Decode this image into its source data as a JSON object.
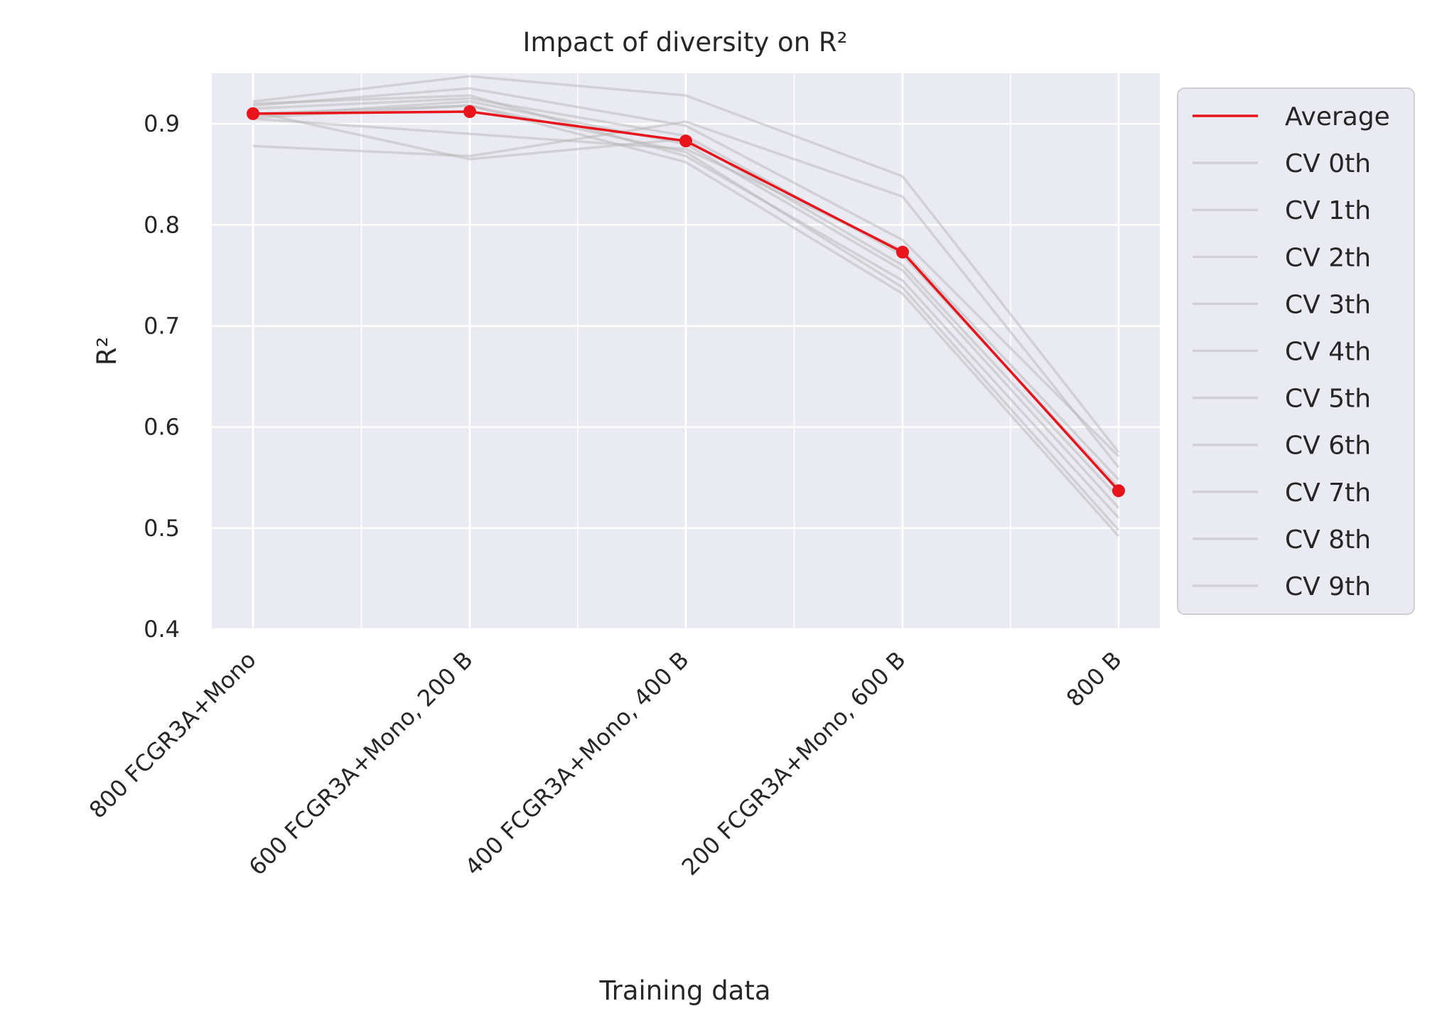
{
  "chart_data": {
    "type": "line",
    "title": "Impact of diversity on R²",
    "xlabel": "Training data",
    "ylabel": "R²",
    "categories": [
      "800 FCGR3A+Mono",
      "600 FCGR3A+Mono, 200 B",
      "400 FCGR3A+Mono, 400 B",
      "200 FCGR3A+Mono, 600 B",
      "800 B"
    ],
    "ylim": [
      0.4,
      0.95
    ],
    "yticks": [
      "0.4",
      "0.5",
      "0.6",
      "0.7",
      "0.8",
      "0.9"
    ],
    "grid": true,
    "legend_position": "outside-right",
    "average": {
      "name": "Average",
      "color": "#e8141b",
      "values": [
        0.91,
        0.912,
        0.883,
        0.773,
        0.537
      ]
    },
    "cv_color": "#b8b8b8",
    "series": [
      {
        "name": "CV 0th",
        "values": [
          0.922,
          0.947,
          0.928,
          0.848,
          0.575
        ]
      },
      {
        "name": "CV 1th",
        "values": [
          0.878,
          0.868,
          0.902,
          0.828,
          0.56
        ]
      },
      {
        "name": "CV 2th",
        "values": [
          0.918,
          0.935,
          0.898,
          0.785,
          0.571
        ]
      },
      {
        "name": "CV 3th",
        "values": [
          0.905,
          0.89,
          0.875,
          0.775,
          0.548
        ]
      },
      {
        "name": "CV 4th",
        "values": [
          0.915,
          0.925,
          0.888,
          0.77,
          0.54
        ]
      },
      {
        "name": "CV 5th",
        "values": [
          0.912,
          0.865,
          0.885,
          0.76,
          0.53
        ]
      },
      {
        "name": "CV 6th",
        "values": [
          0.908,
          0.922,
          0.88,
          0.755,
          0.52
        ]
      },
      {
        "name": "CV 7th",
        "values": [
          0.92,
          0.928,
          0.868,
          0.745,
          0.51
        ]
      },
      {
        "name": "CV 8th",
        "values": [
          0.906,
          0.918,
          0.872,
          0.738,
          0.498
        ]
      },
      {
        "name": "CV 9th",
        "values": [
          0.91,
          0.918,
          0.862,
          0.732,
          0.492
        ]
      }
    ]
  }
}
